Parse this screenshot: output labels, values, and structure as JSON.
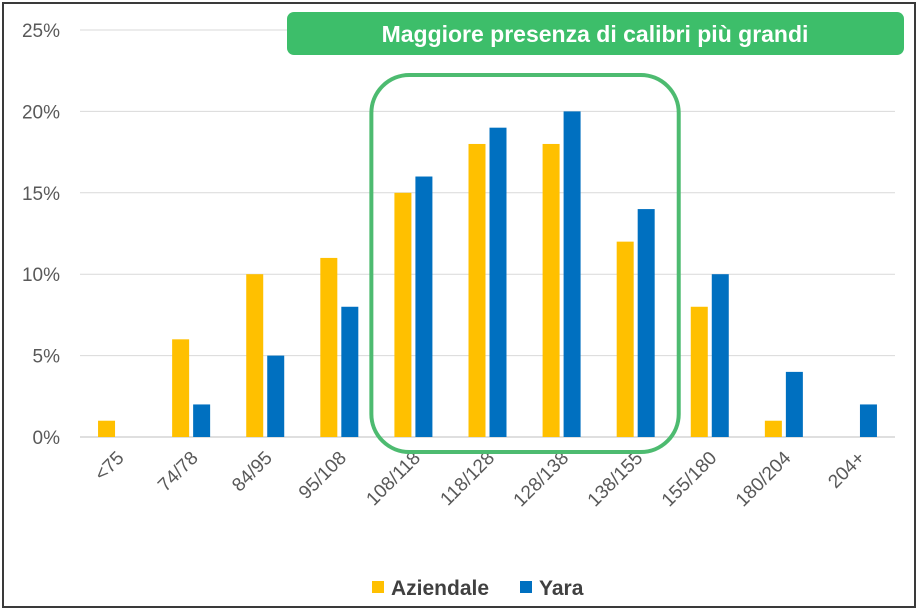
{
  "chart_data": {
    "type": "bar",
    "categories": [
      "<75",
      "74/78",
      "84/95",
      "95/108",
      "108/118",
      "118/128",
      "128/138",
      "138/155",
      "155/180",
      "180/204",
      "204+"
    ],
    "series": [
      {
        "name": "Aziendale",
        "color": "#FFC000",
        "values": [
          1,
          6,
          10,
          11,
          15,
          18,
          18,
          12,
          8,
          1,
          0
        ]
      },
      {
        "name": "Yara",
        "color": "#0070C0",
        "values": [
          0,
          2,
          5,
          8,
          16,
          19,
          20,
          14,
          10,
          4,
          2
        ]
      }
    ],
    "ylim": [
      0,
      25
    ],
    "yticks": [
      "0%",
      "5%",
      "10%",
      "15%",
      "20%",
      "25%"
    ],
    "grid": true,
    "legend_position": "bottom-center",
    "annotation": {
      "text": "Maggiore presenza di calibri più grandi",
      "background_color": "#3DBE6A",
      "highlight_categories": [
        "108/118",
        "118/128",
        "128/138",
        "138/155"
      ],
      "highlight_border_color": "#4DBB70"
    }
  }
}
